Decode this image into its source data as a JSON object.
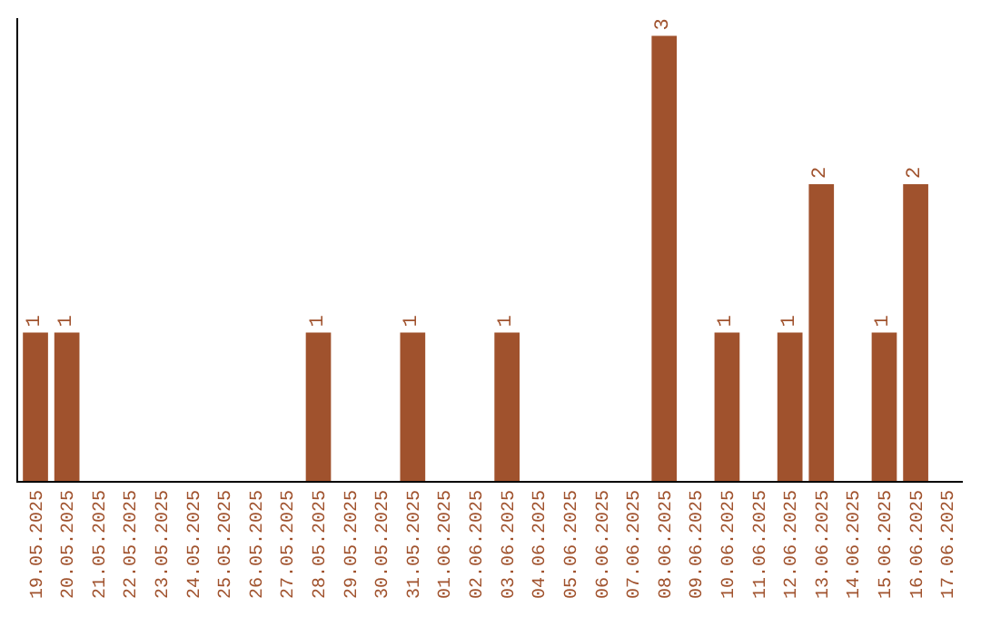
{
  "chart_data": {
    "type": "bar",
    "categories": [
      "19.05.2025",
      "20.05.2025",
      "21.05.2025",
      "22.05.2025",
      "23.05.2025",
      "24.05.2025",
      "25.05.2025",
      "26.05.2025",
      "27.05.2025",
      "28.05.2025",
      "29.05.2025",
      "30.05.2025",
      "31.05.2025",
      "01.06.2025",
      "02.06.2025",
      "03.06.2025",
      "04.06.2025",
      "05.06.2025",
      "06.06.2025",
      "07.06.2025",
      "08.06.2025",
      "09.06.2025",
      "10.06.2025",
      "11.06.2025",
      "12.06.2025",
      "13.06.2025",
      "14.06.2025",
      "15.06.2025",
      "16.06.2025",
      "17.06.2025"
    ],
    "values": [
      1,
      1,
      0,
      0,
      0,
      0,
      0,
      0,
      0,
      1,
      0,
      0,
      1,
      0,
      0,
      1,
      0,
      0,
      0,
      0,
      3,
      0,
      1,
      0,
      1,
      2,
      0,
      1,
      2,
      0
    ],
    "value_labels": [
      "1",
      "1",
      null,
      null,
      null,
      null,
      null,
      null,
      null,
      "1",
      null,
      null,
      "1",
      null,
      null,
      "1",
      null,
      null,
      null,
      null,
      "3",
      null,
      "1",
      null,
      "1",
      "2",
      null,
      "1",
      "2",
      null
    ],
    "color": "#a0522d",
    "tick_labels": "x"
  }
}
